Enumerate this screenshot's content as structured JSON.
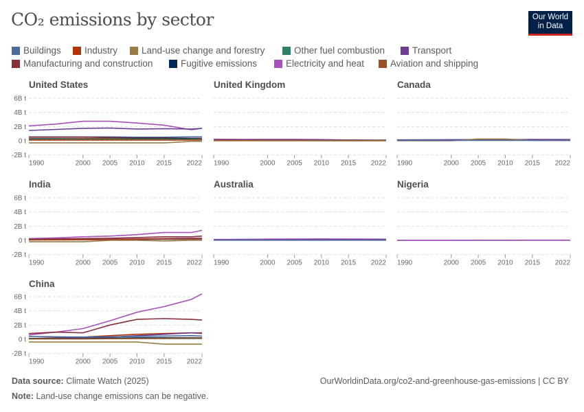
{
  "title": "CO₂ emissions by sector",
  "logo": {
    "line1": "Our World",
    "line2": "in Data"
  },
  "legend": [
    {
      "label": "Buildings",
      "color": "#4c6a9c"
    },
    {
      "label": "Industry",
      "color": "#b13507"
    },
    {
      "label": "Land-use change and forestry",
      "color": "#9a7b45"
    },
    {
      "label": "Other fuel combustion",
      "color": "#2c8465"
    },
    {
      "label": "Transport",
      "color": "#6d3e91"
    },
    {
      "label": "Manufacturing and construction",
      "color": "#883039"
    },
    {
      "label": "Fugitive emissions",
      "color": "#00295b"
    },
    {
      "label": "Electricity and heat",
      "color": "#a652ba"
    },
    {
      "label": "Aviation and shipping",
      "color": "#9a5129"
    }
  ],
  "footer": {
    "source_label": "Data source:",
    "source": "Climate Watch (2025)",
    "url": "OurWorldinData.org/co2-and-greenhouse-gas-emissions | CC BY",
    "note_label": "Note:",
    "note": "Land-use change emissions can be negative."
  },
  "chart_data": {
    "type": "line",
    "layout": "small-multiples",
    "years": [
      1990,
      1995,
      2000,
      2005,
      2010,
      2015,
      2020,
      2022
    ],
    "x_ticks": [
      1990,
      2000,
      2005,
      2010,
      2015,
      2022
    ],
    "y_ticks": [
      -2,
      0,
      2,
      4,
      6
    ],
    "y_tick_labels": [
      "-2B t",
      "0 t",
      "2B t",
      "4B t",
      "6B t"
    ],
    "ylim": [
      -2,
      6.5
    ],
    "xlim": [
      1990,
      2022
    ],
    "unit": "billion tonnes",
    "grid": true,
    "panels": [
      {
        "name": "United States",
        "series": {
          "Electricity and heat": [
            2.1,
            2.35,
            2.75,
            2.75,
            2.5,
            2.2,
            1.55,
            1.75
          ],
          "Transport": [
            1.45,
            1.6,
            1.75,
            1.8,
            1.65,
            1.7,
            1.65,
            1.75
          ],
          "Buildings": [
            0.55,
            0.55,
            0.55,
            0.55,
            0.5,
            0.5,
            0.55,
            0.55
          ],
          "Manufacturing and construction": [
            0.5,
            0.5,
            0.5,
            0.45,
            0.4,
            0.4,
            0.35,
            0.35
          ],
          "Fugitive emissions": [
            0.3,
            0.3,
            0.3,
            0.35,
            0.35,
            0.35,
            0.3,
            0.3
          ],
          "Aviation and shipping": [
            0.25,
            0.25,
            0.3,
            0.3,
            0.25,
            0.25,
            0.2,
            0.25
          ],
          "Other fuel combustion": [
            0.2,
            0.2,
            0.2,
            0.2,
            0.2,
            0.2,
            0.2,
            0.2
          ],
          "Industry": [
            0.1,
            0.1,
            0.1,
            0.1,
            0.1,
            0.1,
            0.1,
            0.1
          ],
          "Land-use change and forestry": [
            -0.3,
            -0.3,
            -0.3,
            -0.3,
            -0.3,
            -0.3,
            -0.1,
            -0.1
          ]
        }
      },
      {
        "name": "United Kingdom",
        "series": {
          "Electricity and heat": [
            0.22,
            0.2,
            0.2,
            0.2,
            0.17,
            0.12,
            0.07,
            0.07
          ],
          "Transport": [
            0.12,
            0.12,
            0.13,
            0.13,
            0.12,
            0.12,
            0.1,
            0.11
          ],
          "Buildings": [
            0.1,
            0.1,
            0.1,
            0.1,
            0.1,
            0.08,
            0.08,
            0.07
          ],
          "Manufacturing and construction": [
            0.08,
            0.08,
            0.07,
            0.07,
            0.05,
            0.05,
            0.04,
            0.04
          ],
          "Industry": [
            0.02,
            0.02,
            0.02,
            0.02,
            0.01,
            0.01,
            0.01,
            0.01
          ],
          "Land-use change and forestry": [
            0.0,
            0.0,
            0.0,
            0.0,
            0.0,
            0.0,
            0.0,
            0.0
          ]
        }
      },
      {
        "name": "Canada",
        "series": {
          "Electricity and heat": [
            0.1,
            0.11,
            0.13,
            0.12,
            0.1,
            0.08,
            0.06,
            0.06
          ],
          "Transport": [
            0.13,
            0.14,
            0.15,
            0.17,
            0.17,
            0.18,
            0.17,
            0.17
          ],
          "Land-use change and forestry": [
            0.0,
            0.0,
            0.0,
            0.25,
            0.25,
            0.05,
            0.05,
            0.05
          ],
          "Buildings": [
            0.06,
            0.06,
            0.06,
            0.06,
            0.06,
            0.06,
            0.06,
            0.06
          ]
        }
      },
      {
        "name": "India",
        "series": {
          "Electricity and heat": [
            0.25,
            0.35,
            0.5,
            0.6,
            0.8,
            1.1,
            1.1,
            1.4
          ],
          "Manufacturing and construction": [
            0.15,
            0.2,
            0.25,
            0.3,
            0.4,
            0.5,
            0.5,
            0.6
          ],
          "Transport": [
            0.08,
            0.1,
            0.1,
            0.15,
            0.2,
            0.25,
            0.3,
            0.3
          ],
          "Buildings": [
            0.1,
            0.1,
            0.1,
            0.1,
            0.12,
            0.14,
            0.15,
            0.16
          ],
          "Industry": [
            0.05,
            0.07,
            0.08,
            0.1,
            0.15,
            0.2,
            0.2,
            0.22
          ],
          "Land-use change and forestry": [
            -0.2,
            -0.2,
            -0.2,
            0.0,
            0.0,
            -0.1,
            0.0,
            0.0
          ]
        }
      },
      {
        "name": "Australia",
        "series": {
          "Electricity and heat": [
            0.13,
            0.14,
            0.17,
            0.19,
            0.2,
            0.19,
            0.17,
            0.16
          ],
          "Transport": [
            0.06,
            0.07,
            0.07,
            0.08,
            0.09,
            0.1,
            0.1,
            0.1
          ],
          "Buildings": [
            0.02,
            0.02,
            0.02,
            0.02,
            0.02,
            0.02,
            0.02,
            0.02
          ]
        }
      },
      {
        "name": "Nigeria",
        "series": {
          "Buildings": [
            0.0,
            0.0,
            0.0,
            0.0,
            0.0,
            0.0,
            0.0,
            0.0
          ],
          "Electricity and heat": [
            0.01,
            0.01,
            0.01,
            0.02,
            0.02,
            0.03,
            0.03,
            0.03
          ]
        }
      },
      {
        "name": "China",
        "series": {
          "Electricity and heat": [
            0.6,
            1.0,
            1.5,
            2.6,
            3.8,
            4.6,
            5.6,
            6.4
          ],
          "Manufacturing and construction": [
            0.8,
            1.0,
            0.9,
            2.0,
            2.8,
            2.9,
            2.8,
            2.7
          ],
          "Industry": [
            0.1,
            0.2,
            0.3,
            0.5,
            0.7,
            0.8,
            0.9,
            0.8
          ],
          "Transport": [
            0.1,
            0.15,
            0.2,
            0.3,
            0.5,
            0.7,
            0.9,
            0.9
          ],
          "Buildings": [
            0.4,
            0.35,
            0.3,
            0.35,
            0.4,
            0.45,
            0.5,
            0.45
          ],
          "Fugitive emissions": [
            0.1,
            0.1,
            0.1,
            0.15,
            0.2,
            0.2,
            0.2,
            0.2
          ],
          "Other fuel combustion": [
            0.05,
            0.05,
            0.05,
            0.08,
            0.1,
            0.1,
            0.1,
            0.1
          ],
          "Aviation and shipping": [
            0.05,
            0.05,
            0.06,
            0.08,
            0.1,
            0.12,
            0.15,
            0.15
          ],
          "Land-use change and forestry": [
            -0.4,
            -0.4,
            -0.4,
            -0.4,
            -0.4,
            -0.7,
            -0.7,
            -0.7
          ]
        }
      }
    ]
  }
}
